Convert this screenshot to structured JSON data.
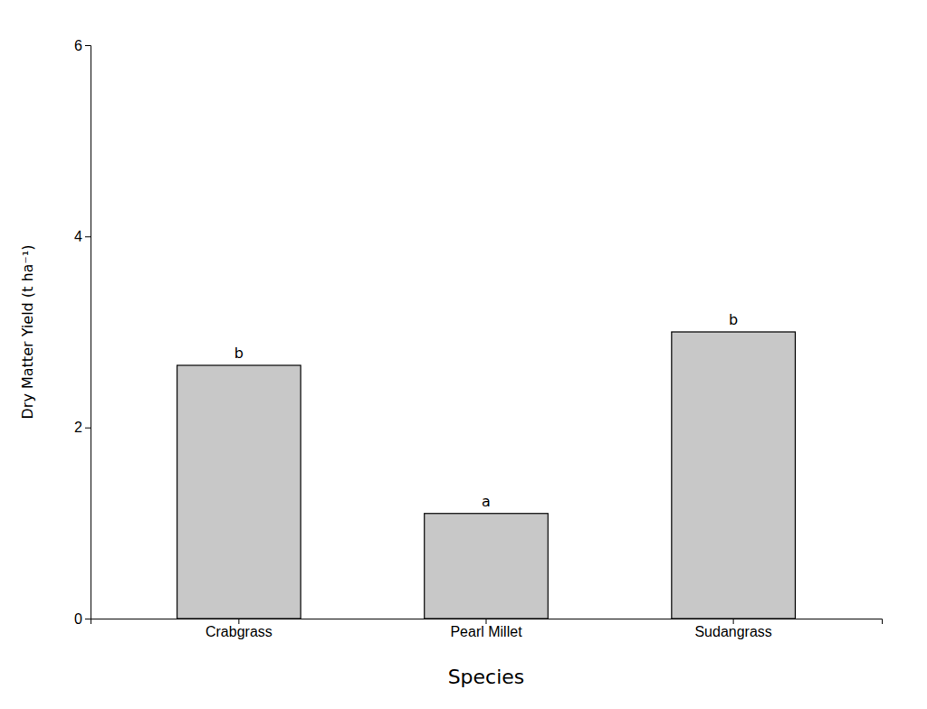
{
  "chart_data": {
    "type": "bar",
    "xlabel": "Species",
    "ylabel": "Dry Matter Yield (t ha⁻¹)",
    "categories": [
      "Crabgrass",
      "Pearl Millet",
      "Sudangrass"
    ],
    "values": [
      2.65,
      1.1,
      3.0
    ],
    "annotations": [
      "b",
      "a",
      "b"
    ],
    "color": "#c8c8c8",
    "ylim": [
      0,
      6.0
    ],
    "yticks": [
      0,
      2,
      4,
      6
    ],
    "grid": false
  }
}
